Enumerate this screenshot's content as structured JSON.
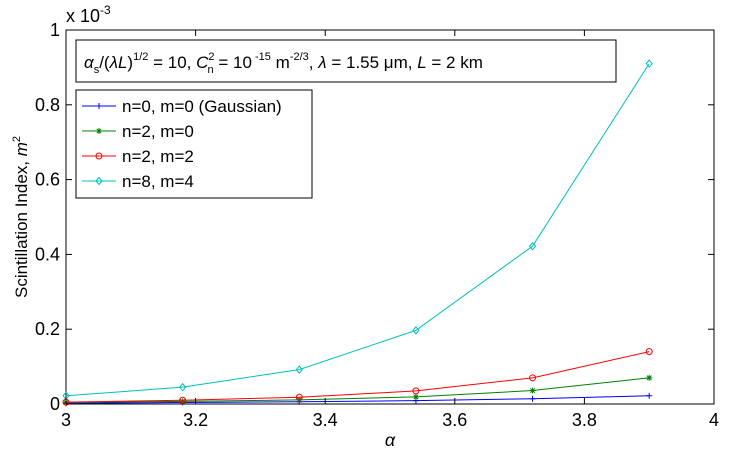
{
  "chart_data": {
    "type": "line",
    "xlabel": "α",
    "ylabel": "Scintillation Index, m²",
    "y_multiplier": "x 10⁻³",
    "xlim": [
      3,
      4
    ],
    "ylim": [
      0,
      1
    ],
    "x_ticks": [
      "3",
      "3.2",
      "3.4",
      "3.6",
      "3.8",
      "4"
    ],
    "y_ticks": [
      "0",
      "0.2",
      "0.4",
      "0.6",
      "0.8",
      "1"
    ],
    "annotation": "αs/(λL)^1/2 = 10, C²n = 10⁻¹⁵ m⁻²/³, λ = 1.55 μm, L = 2 km",
    "legend_position": "top-left",
    "x": [
      3.0,
      3.18,
      3.36,
      3.54,
      3.72,
      3.9
    ],
    "series": [
      {
        "name": "n=0, m=0 (Gaussian)",
        "color": "#0000ff",
        "marker": "plus",
        "values": [
          0.002,
          0.004,
          0.006,
          0.009,
          0.014,
          0.022
        ]
      },
      {
        "name": "n=2, m=0",
        "color": "#008000",
        "marker": "star",
        "values": [
          0.004,
          0.007,
          0.011,
          0.019,
          0.036,
          0.07
        ]
      },
      {
        "name": "n=2, m=2",
        "color": "#ff0000",
        "marker": "circle",
        "values": [
          0.005,
          0.01,
          0.018,
          0.035,
          0.07,
          0.14
        ]
      },
      {
        "name": "n=8, m=4",
        "color": "#00bfbf",
        "marker": "diamond",
        "values": [
          0.022,
          0.045,
          0.092,
          0.197,
          0.422,
          0.91
        ]
      }
    ]
  }
}
